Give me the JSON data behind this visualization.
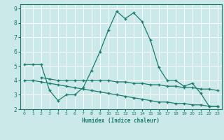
{
  "xlabel": "Humidex (Indice chaleur)",
  "background_color": "#cce9e9",
  "grid_color": "#ffffff",
  "line_color": "#1a7a6e",
  "xlim": [
    -0.5,
    23.5
  ],
  "ylim": [
    2,
    9.3
  ],
  "xticks": [
    0,
    1,
    2,
    3,
    4,
    5,
    6,
    7,
    8,
    9,
    10,
    11,
    12,
    13,
    14,
    15,
    16,
    17,
    18,
    19,
    20,
    21,
    22,
    23
  ],
  "yticks": [
    2,
    3,
    4,
    5,
    6,
    7,
    8,
    9
  ],
  "line1_x": [
    0,
    1,
    2,
    3,
    4,
    5,
    6,
    7,
    8,
    9,
    10,
    11,
    12,
    13,
    14,
    15,
    16,
    17,
    18,
    19,
    20,
    21,
    22,
    23
  ],
  "line1_y": [
    5.1,
    5.1,
    5.1,
    3.3,
    2.6,
    3.0,
    3.0,
    3.5,
    4.7,
    6.0,
    7.5,
    8.8,
    8.3,
    8.7,
    8.1,
    6.8,
    4.9,
    4.0,
    4.0,
    3.6,
    3.8,
    3.1,
    2.2,
    2.2
  ],
  "line2_x": [
    2,
    3,
    4,
    5,
    6,
    7,
    8,
    9,
    10,
    11,
    12,
    13,
    14,
    15,
    16,
    17,
    18,
    19,
    20,
    21,
    22,
    23
  ],
  "line2_y": [
    4.2,
    4.1,
    4.0,
    4.0,
    4.0,
    4.0,
    4.0,
    4.0,
    4.0,
    3.9,
    3.9,
    3.8,
    3.8,
    3.7,
    3.7,
    3.6,
    3.6,
    3.5,
    3.5,
    3.4,
    3.4,
    3.3
  ],
  "line3_x": [
    0,
    1,
    2,
    3,
    4,
    5,
    6,
    7,
    8,
    9,
    10,
    11,
    12,
    13,
    14,
    15,
    16,
    17,
    18,
    19,
    20,
    21,
    22,
    23
  ],
  "line3_y": [
    4.0,
    4.0,
    3.9,
    3.8,
    3.7,
    3.6,
    3.5,
    3.4,
    3.3,
    3.2,
    3.1,
    3.0,
    2.9,
    2.8,
    2.7,
    2.6,
    2.5,
    2.5,
    2.4,
    2.4,
    2.3,
    2.3,
    2.2,
    2.2
  ]
}
